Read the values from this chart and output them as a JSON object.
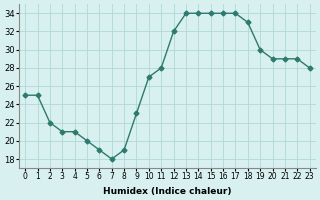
{
  "x": [
    0,
    1,
    2,
    3,
    4,
    5,
    6,
    7,
    8,
    9,
    10,
    11,
    12,
    13,
    14,
    15,
    16,
    17,
    18,
    19,
    20,
    21,
    22,
    23
  ],
  "y": [
    25,
    25,
    22,
    21,
    21,
    20,
    19,
    18,
    19,
    23,
    27,
    28,
    32,
    34,
    34,
    34,
    34,
    34,
    33,
    30,
    29,
    29,
    29,
    28
  ],
  "line_color": "#2d7a6e",
  "marker_color": "#2d7a6e",
  "bg_color": "#d8f0f0",
  "grid_color": "#b0d8d8",
  "xlabel": "Humidex (Indice chaleur)",
  "ylim": [
    17,
    35
  ],
  "xlim": [
    -0.5,
    23.5
  ],
  "yticks": [
    18,
    20,
    22,
    24,
    26,
    28,
    30,
    32,
    34
  ],
  "xtick_labels": [
    "0",
    "1",
    "2",
    "3",
    "4",
    "5",
    "6",
    "7",
    "8",
    "9",
    "10",
    "11",
    "12",
    "13",
    "14",
    "15",
    "16",
    "17",
    "18",
    "19",
    "20",
    "21",
    "22",
    "23"
  ]
}
